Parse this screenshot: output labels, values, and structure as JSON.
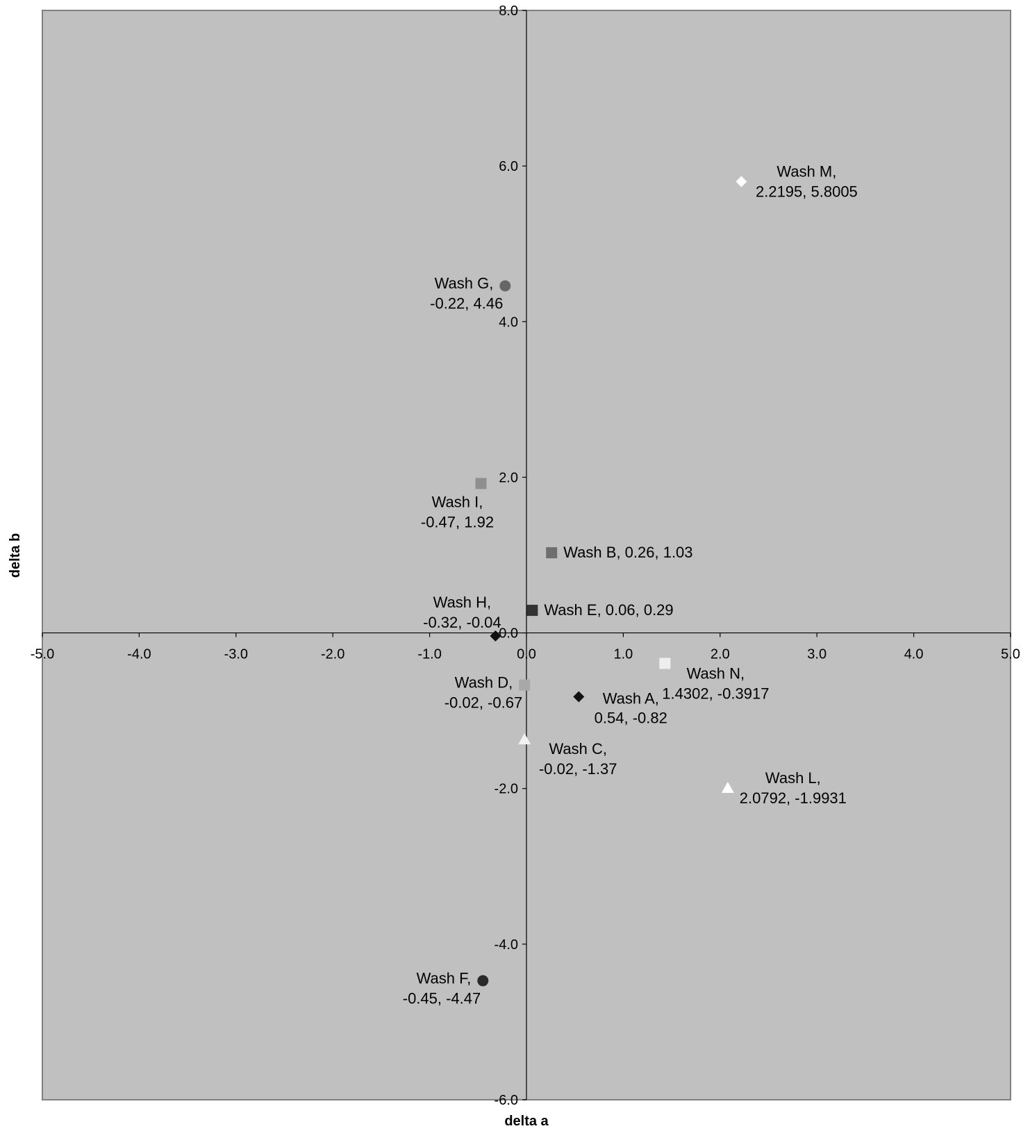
{
  "chart_data": {
    "type": "scatter",
    "xlabel": "delta a",
    "ylabel": "delta b",
    "xlim": [
      -5.0,
      5.0
    ],
    "ylim": [
      -6.0,
      8.0
    ],
    "x_ticks": [
      "-5.0",
      "-4.0",
      "-3.0",
      "-2.0",
      "-1.0",
      "0.0",
      "1.0",
      "2.0",
      "3.0",
      "4.0",
      "5.0"
    ],
    "y_ticks": [
      "-6.0",
      "-4.0",
      "-2.0",
      "0.0",
      "2.0",
      "4.0",
      "6.0",
      "8.0"
    ],
    "grid": false,
    "plot_background": "#c0c0c0",
    "points": [
      {
        "x": 0.54,
        "y": -0.82,
        "label_line1": "Wash A,",
        "label_line2": "0.54, -0.82",
        "marker": "diamond",
        "color": "#111111",
        "label_pos": "below-right"
      },
      {
        "x": 0.26,
        "y": 1.03,
        "label_line1": "Wash B, 0.26, 1.03",
        "label_line2": "",
        "marker": "square",
        "color": "#6e6e6e",
        "label_pos": "right"
      },
      {
        "x": -0.02,
        "y": -1.37,
        "label_line1": "Wash C,",
        "label_line2": "-0.02, -1.37",
        "marker": "triangle",
        "color": "#f2f2f2",
        "label_pos": "below-right"
      },
      {
        "x": -0.02,
        "y": -0.67,
        "label_line1": "Wash D,",
        "label_line2": "-0.02, -0.67",
        "marker": "square",
        "color": "#a8a8a8",
        "label_pos": "left"
      },
      {
        "x": 0.06,
        "y": 0.29,
        "label_line1": "Wash E, 0.06, 0.29",
        "label_line2": "",
        "marker": "square",
        "color": "#333333",
        "label_pos": "right"
      },
      {
        "x": -0.45,
        "y": -4.47,
        "label_line1": "Wash F,",
        "label_line2": "-0.45, -4.47",
        "marker": "circle",
        "color": "#2a2a2a",
        "label_pos": "left"
      },
      {
        "x": -0.22,
        "y": 4.46,
        "label_line1": "Wash G,",
        "label_line2": "-0.22, 4.46",
        "marker": "circle",
        "color": "#666666",
        "label_pos": "left"
      },
      {
        "x": -0.32,
        "y": -0.04,
        "label_line1": "Wash H,",
        "label_line2": "-0.32, -0.04",
        "marker": "diamond",
        "color": "#111111",
        "label_pos": "above"
      },
      {
        "x": -0.47,
        "y": 1.92,
        "label_line1": "Wash I,",
        "label_line2": "-0.47, 1.92",
        "marker": "square",
        "color": "#8f8f8f",
        "label_pos": "below"
      },
      {
        "x": 2.0792,
        "y": -1.9931,
        "label_line1": "Wash L,",
        "label_line2": "2.0792, -1.9931",
        "marker": "triangle",
        "color": "#ffffff",
        "label_pos": "right"
      },
      {
        "x": 2.2195,
        "y": 5.8005,
        "label_line1": "Wash M,",
        "label_line2": "2.2195, 5.8005",
        "marker": "diamond",
        "color": "#ffffff",
        "label_pos": "right"
      },
      {
        "x": 1.4302,
        "y": -0.3917,
        "label_line1": "Wash N,",
        "label_line2": "1.4302, -0.3917",
        "marker": "square",
        "color": "#eeeeee",
        "label_pos": "below-right"
      }
    ]
  }
}
